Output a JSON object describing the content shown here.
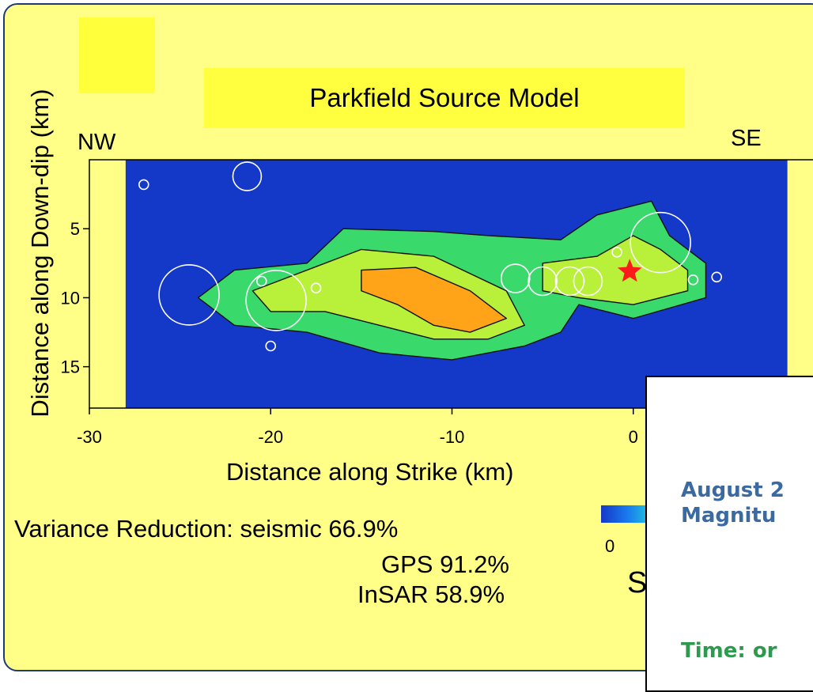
{
  "slide": {
    "title": "Parkfield Source Model",
    "nw_label": "NW",
    "se_label": "SE",
    "variance": {
      "seismic": "Variance Reduction: seismic 66.9%",
      "gps": "GPS 91.2%",
      "insar": "InSAR 58.9%"
    }
  },
  "colorbar": {
    "min_label": "0",
    "partial_label": "S"
  },
  "inset": {
    "line1": "August 2",
    "line2": "Magnitu",
    "time": "Time: or"
  },
  "chart_data": {
    "type": "heatmap",
    "title": "Parkfield Source Model",
    "xlabel": "Distance along Strike (km)",
    "ylabel": "Distance along Down-dip (km)",
    "xlim": [
      -30,
      10
    ],
    "ylim": [
      18,
      0
    ],
    "x_ticks": [
      -30,
      -20,
      -10,
      0
    ],
    "y_ticks": [
      5,
      10,
      15
    ],
    "grid": false,
    "colormap": [
      "#1438c8",
      "#1a7cf0",
      "#22d6d6",
      "#39d96b",
      "#b8f03a",
      "#ffe22a",
      "#ffa319",
      "#f07a10"
    ],
    "hypocenter": {
      "x": -0.2,
      "y": 8.1,
      "marker": "star",
      "color": "#ff1a1a"
    },
    "slip_patches": [
      {
        "level": "low",
        "polygon": [
          [
            -24,
            10
          ],
          [
            -22,
            8
          ],
          [
            -18,
            7.5
          ],
          [
            -16,
            5
          ],
          [
            -11,
            5.2
          ],
          [
            -8,
            5.5
          ],
          [
            -4,
            5.8
          ],
          [
            -2,
            4
          ],
          [
            1,
            3
          ],
          [
            2,
            5.5
          ],
          [
            4,
            7.5
          ],
          [
            4,
            10
          ],
          [
            0,
            11.5
          ],
          [
            -3,
            10.5
          ],
          [
            -4,
            12.5
          ],
          [
            -6,
            13.5
          ],
          [
            -10,
            14.5
          ],
          [
            -14,
            14
          ],
          [
            -18,
            12.5
          ],
          [
            -22,
            12
          ]
        ]
      },
      {
        "level": "medium",
        "polygon": [
          [
            -21,
            9.5
          ],
          [
            -18,
            8
          ],
          [
            -15,
            6.5
          ],
          [
            -11,
            7
          ],
          [
            -7,
            9.5
          ],
          [
            -6,
            12
          ],
          [
            -8,
            13
          ],
          [
            -11,
            13
          ],
          [
            -14,
            12
          ],
          [
            -17,
            11
          ],
          [
            -20,
            11
          ]
        ]
      },
      {
        "level": "medium",
        "polygon": [
          [
            -5,
            7.5
          ],
          [
            -2,
            7
          ],
          [
            0,
            5.5
          ],
          [
            1.5,
            6.5
          ],
          [
            3,
            8
          ],
          [
            3,
            9.5
          ],
          [
            0,
            10.5
          ],
          [
            -3,
            10
          ],
          [
            -5,
            9.5
          ]
        ]
      },
      {
        "level": "high",
        "polygon": [
          [
            -15,
            8
          ],
          [
            -12,
            7.8
          ],
          [
            -9,
            9.5
          ],
          [
            -7,
            11.5
          ],
          [
            -9,
            12.5
          ],
          [
            -11,
            12
          ],
          [
            -13,
            10.5
          ],
          [
            -15,
            9.5
          ]
        ]
      }
    ],
    "aftershocks": [
      {
        "x": -24.5,
        "y": 9.8,
        "size": "large"
      },
      {
        "x": -19.7,
        "y": 10.2,
        "size": "large"
      },
      {
        "x": 1.5,
        "y": 6,
        "size": "large"
      },
      {
        "x": -3.5,
        "y": 8.8,
        "size": "medium"
      },
      {
        "x": -5,
        "y": 8.8,
        "size": "medium"
      },
      {
        "x": -6.5,
        "y": 8.6,
        "size": "medium"
      },
      {
        "x": -2.5,
        "y": 8.8,
        "size": "medium"
      },
      {
        "x": -21.3,
        "y": 1.2,
        "size": "medium"
      },
      {
        "x": -17.5,
        "y": 9.3,
        "size": "small"
      },
      {
        "x": -20.5,
        "y": 8.8,
        "size": "small"
      },
      {
        "x": 3.3,
        "y": 8.7,
        "size": "small"
      },
      {
        "x": 4.6,
        "y": 8.5,
        "size": "small"
      },
      {
        "x": -0.9,
        "y": 6.7,
        "size": "small"
      },
      {
        "x": -20,
        "y": 13.5,
        "size": "small"
      },
      {
        "x": -27,
        "y": 1.8,
        "size": "small"
      }
    ],
    "annotations": [
      "NW",
      "SE"
    ]
  }
}
